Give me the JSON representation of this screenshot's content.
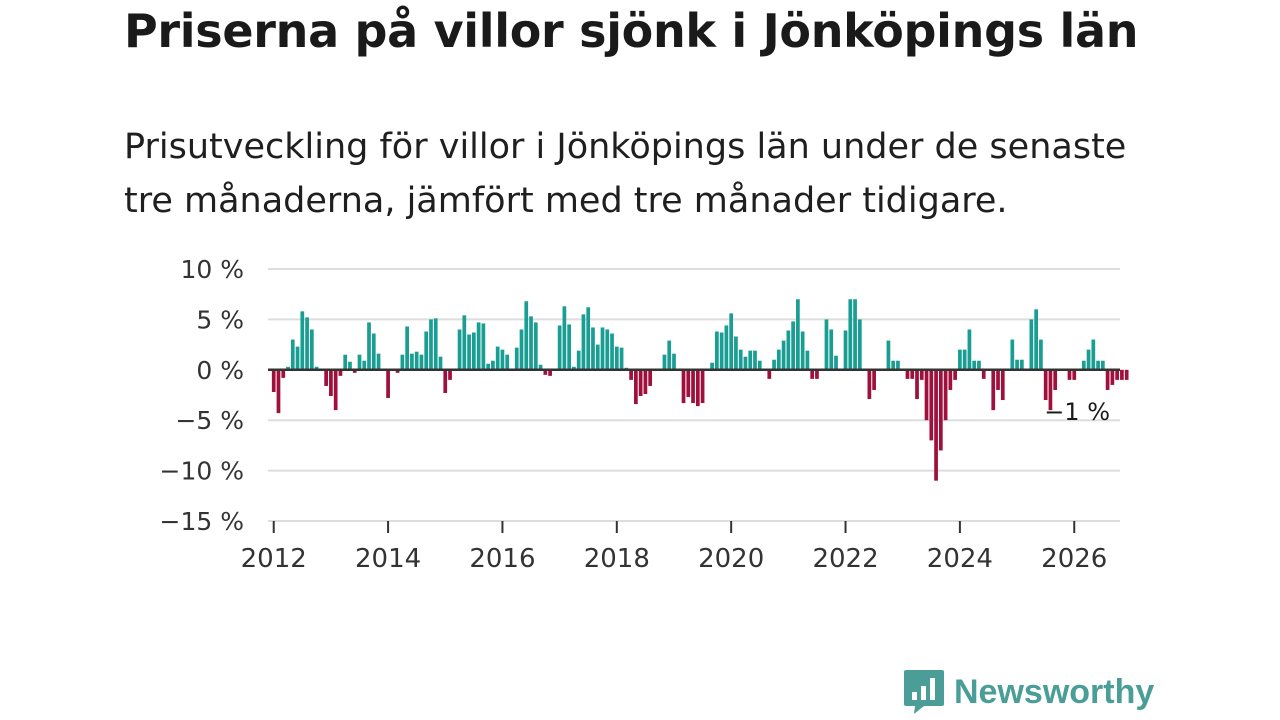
{
  "title": "Priserna på villor sjönk i Jönköpings län",
  "subtitle": "Prisutveckling för villor i Jönköpings län under de senaste tre månaderna, jämfört med tre månader tidigare.",
  "logo": {
    "text": "Newsworthy",
    "icon": "chart-bubble-icon",
    "color": "#4a9e97"
  },
  "colors": {
    "positive": "#1a9e93",
    "negative": "#a0103c",
    "grid": "#dddddd",
    "axis": "#333333"
  },
  "chart_data": {
    "type": "bar",
    "title": "Priserna på villor sjönk i Jönköpings län",
    "ylabel": "",
    "xlabel": "",
    "ylim": [
      -15,
      10
    ],
    "yticks": [
      10,
      5,
      0,
      -5,
      -10,
      -15
    ],
    "ytick_labels": [
      "10 %",
      "5 %",
      "0 %",
      "−5 %",
      "−10 %",
      "−15 %"
    ],
    "xlim": [
      2011.9,
      2026.8
    ],
    "xticks": [
      2012,
      2014,
      2016,
      2018,
      2020,
      2022,
      2024,
      2026
    ],
    "xtick_labels": [
      "2012",
      "2014",
      "2016",
      "2018",
      "2020",
      "2022",
      "2024",
      "2026"
    ],
    "series_start": 2012.0,
    "step_months": 1,
    "annotation": {
      "label": "−1 %",
      "value": -1
    },
    "values": [
      -2.2,
      -4.3,
      -0.8,
      0.3,
      3.0,
      2.3,
      5.8,
      5.2,
      4.0,
      0.3,
      0.0,
      -1.6,
      -2.6,
      -4.0,
      -0.6,
      1.5,
      0.8,
      -0.3,
      1.5,
      0.9,
      4.7,
      3.6,
      1.6,
      0.0,
      -2.8,
      0.0,
      -0.3,
      1.5,
      4.3,
      1.6,
      1.8,
      1.5,
      3.8,
      5.0,
      5.1,
      1.3,
      -2.3,
      -1.0,
      0.0,
      4.0,
      5.4,
      3.5,
      3.7,
      4.7,
      4.6,
      0.6,
      0.9,
      2.3,
      2.0,
      1.5,
      0.0,
      2.2,
      4.0,
      6.8,
      5.3,
      4.7,
      0.5,
      -0.5,
      -0.6,
      0.0,
      4.4,
      6.3,
      4.5,
      0.3,
      1.9,
      5.5,
      6.2,
      4.2,
      2.5,
      4.2,
      4.0,
      3.6,
      2.3,
      2.2,
      0.2,
      -1.0,
      -3.4,
      -2.6,
      -2.4,
      -1.6,
      0.0,
      0.0,
      1.5,
      2.9,
      1.6,
      0.0,
      -3.3,
      -2.7,
      -3.3,
      -3.6,
      -3.3,
      0.0,
      0.7,
      3.8,
      3.7,
      4.4,
      5.6,
      3.3,
      2.0,
      1.3,
      1.9,
      1.9,
      0.9,
      0.0,
      -0.9,
      1.0,
      2.0,
      2.9,
      3.9,
      4.8,
      7.0,
      3.8,
      1.9,
      -0.9,
      -0.9,
      0.0,
      5.0,
      4.0,
      1.4,
      0.0,
      3.9,
      7.0,
      7.0,
      5.0,
      0.0,
      -2.9,
      -2.0,
      0.0,
      0.0,
      2.9,
      0.9,
      0.9,
      0.0,
      -0.9,
      -0.9,
      -2.9,
      -1.0,
      -5.0,
      -7.0,
      -11.0,
      -8.0,
      -5.0,
      -2.0,
      -1.0,
      2.0,
      2.0,
      4.0,
      0.9,
      0.9,
      -0.9,
      0.0,
      -4.0,
      -2.0,
      -3.0,
      0.0,
      3.0,
      1.0,
      1.0,
      0.0,
      5.0,
      6.0,
      3.0,
      -3.0,
      -4.0,
      -2.0,
      0.0,
      0.0,
      -1.0,
      -1.0,
      0.0,
      0.9,
      2.0,
      3.0,
      0.9,
      0.9,
      -2.0,
      -1.5,
      -1.0,
      -1.0,
      -1.0
    ]
  }
}
